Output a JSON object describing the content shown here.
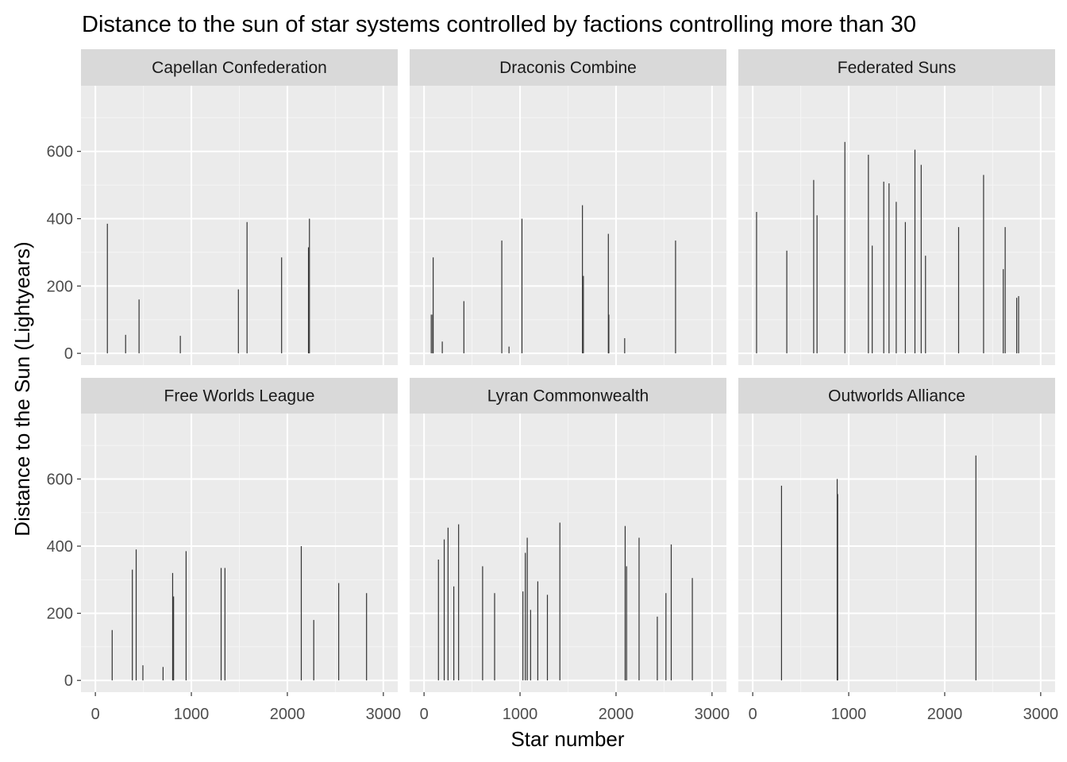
{
  "chart_data": {
    "type": "bar",
    "title": "Distance to the sun of star systems controlled by factions controlling more than 30",
    "xlabel": "Star number",
    "ylabel": "Distance to the Sun (Lightyears)",
    "xlim": [
      -150,
      3150
    ],
    "ylim": [
      -35,
      795
    ],
    "x_ticks": [
      0,
      1000,
      2000,
      3000
    ],
    "y_ticks": [
      0,
      200,
      400,
      600
    ],
    "grid": true,
    "layout": "facet-wrap 2 rows x 3 columns",
    "colors": {
      "panel_bg": "#ebebeb",
      "strip_bg": "#d9d9d9",
      "grid_major": "#ffffff",
      "grid_minor": "#f5f5f5",
      "bar": "#333333",
      "tick_text": "#4d4d4d"
    },
    "facets": [
      {
        "name": "Capellan Confederation",
        "x": [
          125,
          315,
          455,
          885,
          1490,
          1580,
          1940,
          2220,
          2230
        ],
        "values": [
          385,
          55,
          160,
          52,
          190,
          390,
          285,
          315,
          400
        ]
      },
      {
        "name": "Draconis Combine",
        "x": [
          75,
          90,
          95,
          190,
          415,
          810,
          885,
          1020,
          1650,
          1660,
          1920,
          1925,
          2090,
          2620
        ],
        "values": [
          115,
          115,
          285,
          35,
          155,
          335,
          20,
          400,
          440,
          230,
          355,
          115,
          45,
          335
        ]
      },
      {
        "name": "Federated Suns",
        "x": [
          40,
          355,
          635,
          670,
          960,
          1205,
          1245,
          1365,
          1420,
          1495,
          1590,
          1690,
          1755,
          1800,
          2145,
          2405,
          2610,
          2630,
          2750,
          2770
        ],
        "values": [
          420,
          305,
          515,
          410,
          628,
          590,
          320,
          510,
          505,
          450,
          390,
          605,
          560,
          290,
          375,
          530,
          250,
          375,
          165,
          170
        ]
      },
      {
        "name": "Free Worlds League",
        "x": [
          175,
          385,
          425,
          495,
          705,
          805,
          815,
          945,
          1310,
          1350,
          2145,
          2275,
          2535,
          2825
        ],
        "values": [
          150,
          330,
          390,
          45,
          40,
          320,
          250,
          385,
          335,
          335,
          400,
          180,
          290,
          260
        ]
      },
      {
        "name": "Lyran Commonwealth",
        "x": [
          150,
          210,
          250,
          310,
          360,
          610,
          735,
          1030,
          1055,
          1075,
          1110,
          1185,
          1285,
          1415,
          2095,
          2110,
          2240,
          2430,
          2520,
          2575,
          2795
        ],
        "values": [
          360,
          420,
          455,
          280,
          465,
          340,
          260,
          265,
          380,
          425,
          210,
          295,
          255,
          470,
          460,
          340,
          425,
          190,
          260,
          405,
          305
        ]
      },
      {
        "name": "Outworlds Alliance",
        "x": [
          300,
          880,
          885,
          2325
        ],
        "values": [
          580,
          600,
          555,
          670
        ]
      }
    ]
  }
}
